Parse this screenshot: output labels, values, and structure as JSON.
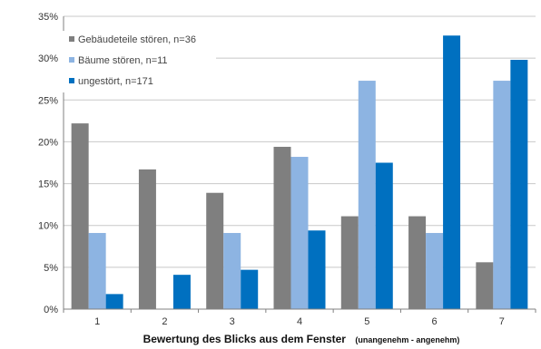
{
  "chart_data": {
    "type": "bar",
    "categories": [
      "1",
      "2",
      "3",
      "4",
      "5",
      "6",
      "7"
    ],
    "series": [
      {
        "name": "Gebäudeteile stören, n=36",
        "color": "#7f7f7f",
        "values": [
          22.2,
          16.7,
          13.9,
          19.4,
          11.1,
          11.1,
          5.6
        ]
      },
      {
        "name": "Bäume stören, n=11",
        "color": "#8db4e2",
        "values": [
          9.1,
          0,
          9.1,
          18.2,
          27.3,
          9.1,
          27.3
        ]
      },
      {
        "name": "ungestört, n=171",
        "color": "#0070c0",
        "values": [
          1.8,
          4.1,
          4.7,
          9.4,
          17.5,
          32.7,
          29.8
        ]
      }
    ],
    "yticks": [
      "0%",
      "5%",
      "10%",
      "15%",
      "20%",
      "25%",
      "30%",
      "35%"
    ],
    "ylim": [
      0,
      35
    ],
    "xlabel": "Bewertung des Blicks aus dem Fenster",
    "xlabel_sub": "(unangenehm - angenehm)",
    "ylabel": "",
    "legend_position": "top-left",
    "grid": true
  }
}
